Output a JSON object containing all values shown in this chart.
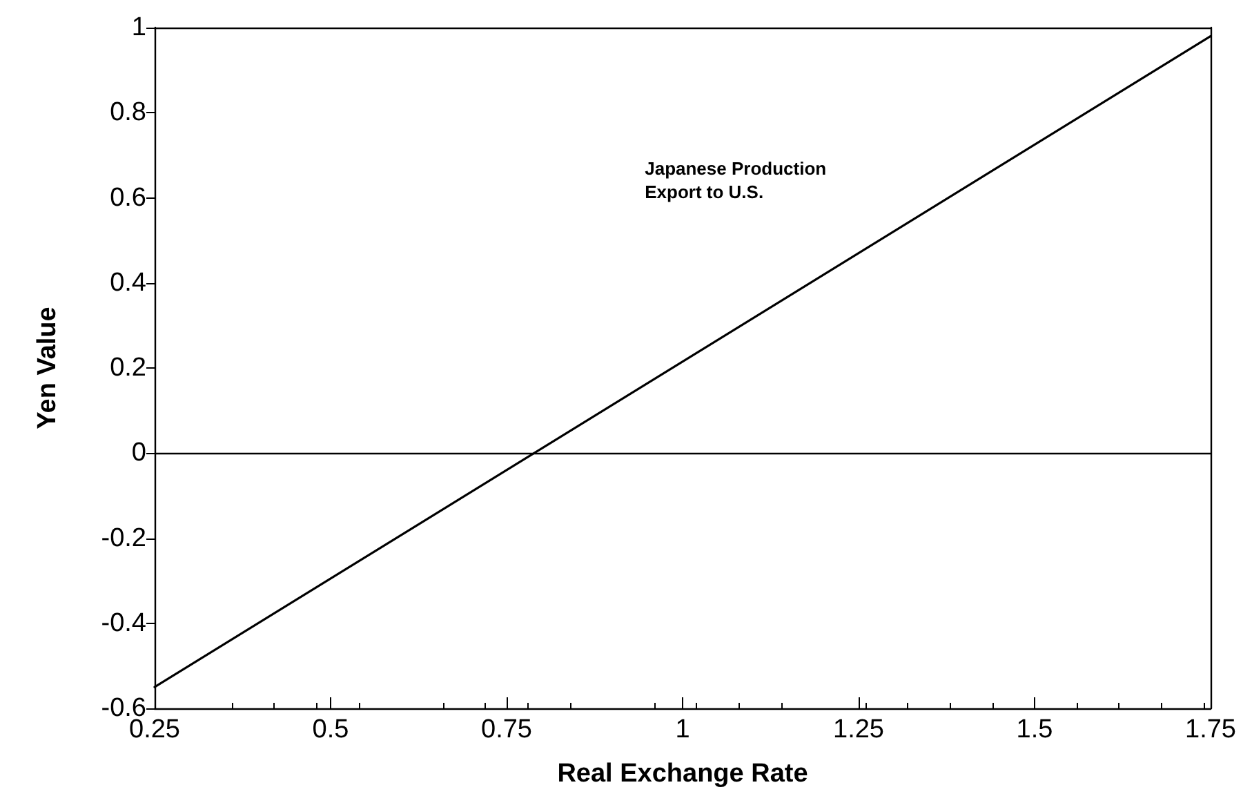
{
  "chart_data": {
    "type": "line",
    "xlabel": "Real Exchange Rate",
    "ylabel": "Yen Value",
    "x": [
      0.25,
      1.75
    ],
    "series": [
      {
        "color": "#000000",
        "values": [
          -0.55,
          0.98
        ]
      }
    ],
    "xlim": [
      0.25,
      1.75
    ],
    "xticks": [
      0.25,
      0.5,
      0.75,
      1,
      1.25,
      1.5,
      1.75
    ],
    "ylim": [
      -0.6,
      1
    ],
    "yticks": [
      -0.6,
      -0.4,
      -0.2,
      0,
      0.2,
      0.4,
      0.6,
      0.8,
      1
    ],
    "ref_lines": [
      {
        "axis": "y",
        "value": 0,
        "color": "#000000"
      }
    ],
    "annotations": [
      "Japanese Production\nExport to U.S."
    ],
    "grid": false,
    "marker": "none",
    "line_style": "solid"
  }
}
